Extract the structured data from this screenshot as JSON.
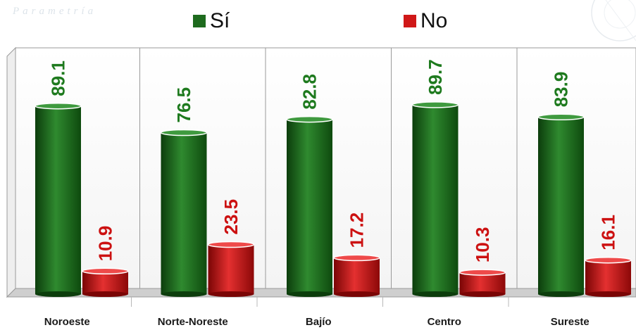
{
  "watermark": "Parametría",
  "colors": {
    "si": "#1e6b1e",
    "si_dark": "#0c3d0c",
    "si_light": "#3f9a3f",
    "no": "#d01818",
    "no_dark": "#7a0505",
    "no_light": "#ee4a4a",
    "si_label": "#1e7a1e",
    "no_label": "#cc1111"
  },
  "legend": {
    "items": [
      {
        "label": "Sí",
        "color": "#1e6b1e"
      },
      {
        "label": "No",
        "color": "#d01818"
      }
    ]
  },
  "chart_data": {
    "type": "bar",
    "categories": [
      "Noroeste",
      "Norte-Noreste",
      "Bajío",
      "Centro",
      "Sureste"
    ],
    "series": [
      {
        "name": "Sí",
        "values": [
          89.1,
          76.5,
          82.8,
          89.7,
          83.9
        ]
      },
      {
        "name": "No",
        "values": [
          10.9,
          23.5,
          17.2,
          10.3,
          16.1
        ]
      }
    ],
    "value_labels": {
      "Sí": [
        "89.1",
        "76.5",
        "82.8",
        "89.7",
        "83.9"
      ],
      "No": [
        "10.9",
        "23.5",
        "17.2",
        "10.3",
        "16.1"
      ]
    },
    "title": "",
    "xlabel": "",
    "ylabel": "",
    "legend_position": "top",
    "grid": false
  }
}
